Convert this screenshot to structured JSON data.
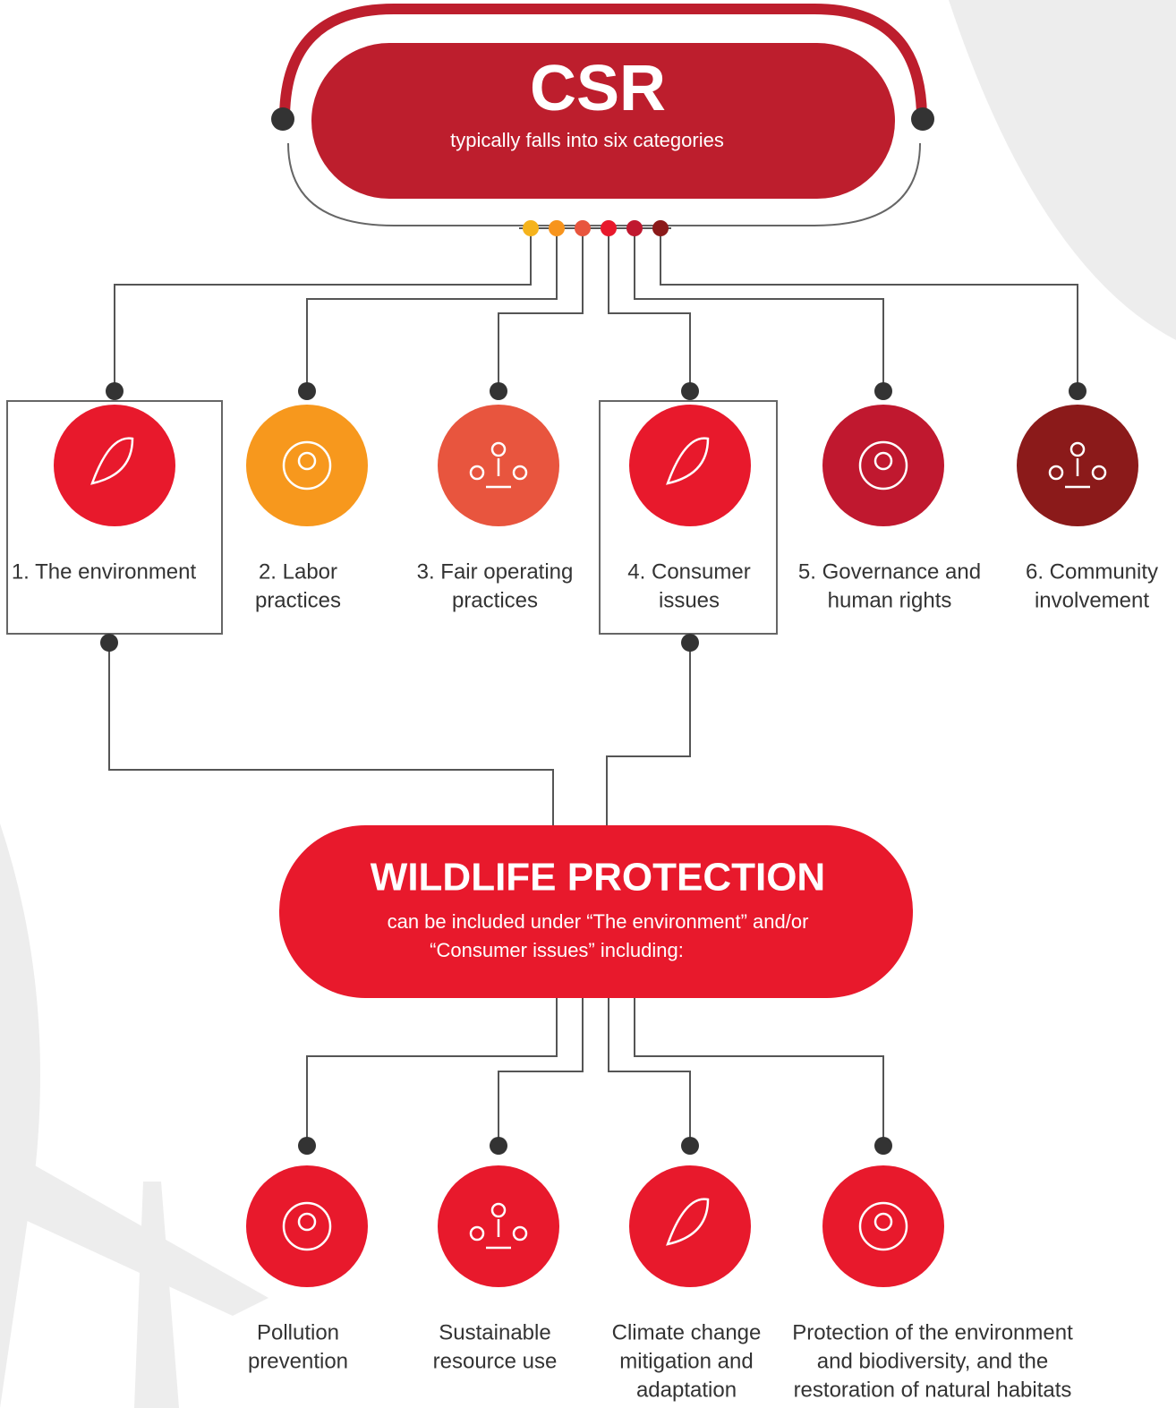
{
  "header": {
    "title": "CSR",
    "subtitle": "typically falls into six categories"
  },
  "categories": [
    {
      "label": [
        "1. The environment"
      ]
    },
    {
      "label": [
        "2. Labor",
        "practices"
      ]
    },
    {
      "label": [
        "3. Fair operating",
        "practices"
      ]
    },
    {
      "label": [
        "4. Consumer",
        "issues"
      ]
    },
    {
      "label": [
        "5. Governance and",
        "human rights"
      ]
    },
    {
      "label": [
        "6. Community",
        "involvement"
      ]
    }
  ],
  "focus": {
    "title": "WILDLIFE PROTECTION",
    "description": [
      "can be included under “The environment” and/or",
      "“Consumer issues” including:"
    ]
  },
  "items": [
    {
      "label": [
        "Pollution",
        "prevention"
      ]
    },
    {
      "label": [
        "Sustainable",
        "resource use"
      ]
    },
    {
      "label": [
        "Climate change",
        "mitigation and",
        "adaptation"
      ]
    },
    {
      "label": [
        "Protection of the environment",
        "and biodiversity, and the",
        "restoration of natural habitats"
      ]
    }
  ]
}
